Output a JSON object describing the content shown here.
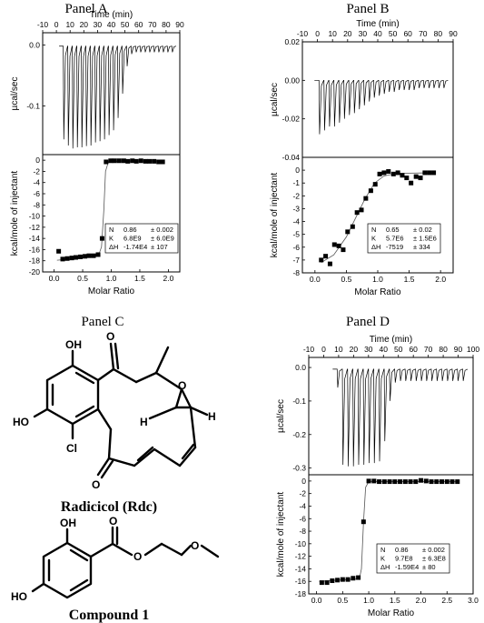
{
  "panels": {
    "A": "Panel A",
    "B": "Panel B",
    "C": "Panel C",
    "D": "Panel D"
  },
  "compounds": {
    "radicicol": "Radicicol (Rdc)",
    "compound1": "Compound 1",
    "atoms": {
      "OH": "OH",
      "HO": "HO",
      "Cl": "Cl",
      "O": "O",
      "H": "H"
    }
  },
  "chart_data": [
    {
      "id": "A",
      "type": "line",
      "top": {
        "xlabel": "Time (min)",
        "ylabel": "µcal/sec",
        "xlim": [
          -10,
          90
        ],
        "ylim": [
          -0.18,
          0.02
        ],
        "xticks": [
          -10,
          0,
          10,
          20,
          30,
          40,
          50,
          60,
          70,
          80,
          90
        ],
        "yticks": [
          0.0,
          -0.1
        ],
        "baseline": -0.002,
        "first_injection_time": 5,
        "interval": 3.3,
        "peaks": [
          -0.155,
          -0.165,
          -0.17,
          -0.168,
          -0.168,
          -0.166,
          -0.165,
          -0.16,
          -0.158,
          -0.155,
          -0.148,
          -0.14,
          -0.12,
          -0.08,
          -0.035,
          -0.015,
          -0.012,
          -0.012,
          -0.012,
          -0.012,
          -0.012,
          -0.012,
          -0.012,
          -0.012,
          -0.012
        ]
      },
      "bottom": {
        "xlabel": "Molar Ratio",
        "ylabel": "kcal/mole of injectant",
        "xlim": [
          -0.2,
          2.2
        ],
        "ylim": [
          -20,
          1
        ],
        "xticks": [
          0.0,
          0.5,
          1.0,
          1.5,
          2.0
        ],
        "yticks": [
          0,
          -2,
          -4,
          -6,
          -8,
          -10,
          -12,
          -14,
          -16,
          -18,
          -20
        ],
        "points": [
          [
            0.08,
            -16.3
          ],
          [
            0.15,
            -17.7
          ],
          [
            0.23,
            -17.6
          ],
          [
            0.31,
            -17.5
          ],
          [
            0.38,
            -17.4
          ],
          [
            0.46,
            -17.3
          ],
          [
            0.54,
            -17.2
          ],
          [
            0.61,
            -17.1
          ],
          [
            0.69,
            -17.1
          ],
          [
            0.77,
            -16.9
          ],
          [
            0.84,
            -14.0
          ],
          [
            0.91,
            -0.3
          ],
          [
            0.99,
            -0.1
          ],
          [
            1.06,
            -0.1
          ],
          [
            1.14,
            -0.1
          ],
          [
            1.22,
            -0.1
          ],
          [
            1.29,
            -0.2
          ],
          [
            1.37,
            -0.1
          ],
          [
            1.44,
            -0.2
          ],
          [
            1.52,
            -0.1
          ],
          [
            1.6,
            -0.2
          ],
          [
            1.67,
            -0.2
          ],
          [
            1.75,
            -0.2
          ],
          [
            1.83,
            -0.3
          ],
          [
            1.9,
            -0.3
          ]
        ],
        "fit": [
          [
            0.05,
            -17.9
          ],
          [
            0.5,
            -17.5
          ],
          [
            0.78,
            -17.0
          ],
          [
            0.83,
            -15.5
          ],
          [
            0.87,
            -9.0
          ],
          [
            0.9,
            -2.0
          ],
          [
            0.95,
            -0.3
          ],
          [
            1.2,
            -0.15
          ],
          [
            1.9,
            -0.15
          ]
        ],
        "stats": [
          [
            "N",
            "0.86",
            "± 0.002"
          ],
          [
            "K",
            "6.8E9",
            "± 6.0E9"
          ],
          [
            "ΔH",
            "-1.74E4",
            "± 107"
          ]
        ]
      }
    },
    {
      "id": "B",
      "type": "line",
      "top": {
        "xlabel": "Time (min)",
        "ylabel": "µcal/sec",
        "xlim": [
          -10,
          90
        ],
        "ylim": [
          -0.04,
          0.02
        ],
        "xticks": [
          -10,
          0,
          10,
          20,
          30,
          40,
          50,
          60,
          70,
          80,
          90
        ],
        "yticks": [
          0.02,
          0.0,
          -0.02,
          -0.04
        ],
        "baseline": 0.0,
        "first_injection_time": 1,
        "interval": 3.3,
        "peaks": [
          -0.028,
          -0.026,
          -0.024,
          -0.024,
          -0.022,
          -0.02,
          -0.018,
          -0.017,
          -0.015,
          -0.013,
          -0.011,
          -0.009,
          -0.008,
          -0.007,
          -0.006,
          -0.006,
          -0.005,
          -0.005,
          -0.005,
          -0.005,
          -0.004,
          -0.004,
          -0.004,
          -0.004,
          -0.004,
          -0.004
        ]
      },
      "bottom": {
        "xlabel": "Molar Ratio",
        "ylabel": "kcal/mole of injectant",
        "xlim": [
          -0.2,
          2.2
        ],
        "ylim": [
          -8,
          1
        ],
        "xticks": [
          0.0,
          0.5,
          1.0,
          1.5,
          2.0
        ],
        "yticks": [
          0,
          -1,
          -2,
          -3,
          -4,
          -5,
          -6,
          -7,
          -8
        ],
        "points": [
          [
            0.1,
            -7.0
          ],
          [
            0.17,
            -6.7
          ],
          [
            0.24,
            -7.3
          ],
          [
            0.31,
            -5.8
          ],
          [
            0.38,
            -5.9
          ],
          [
            0.45,
            -6.2
          ],
          [
            0.52,
            -4.8
          ],
          [
            0.6,
            -4.4
          ],
          [
            0.67,
            -3.3
          ],
          [
            0.74,
            -3.1
          ],
          [
            0.81,
            -2.2
          ],
          [
            0.89,
            -1.6
          ],
          [
            0.96,
            -1.1
          ],
          [
            1.03,
            -0.3
          ],
          [
            1.1,
            -0.2
          ],
          [
            1.17,
            -0.1
          ],
          [
            1.25,
            -0.3
          ],
          [
            1.32,
            -0.2
          ],
          [
            1.39,
            -0.4
          ],
          [
            1.46,
            -0.6
          ],
          [
            1.53,
            -1.0
          ],
          [
            1.61,
            -0.5
          ],
          [
            1.68,
            -0.6
          ],
          [
            1.75,
            -0.2
          ],
          [
            1.82,
            -0.2
          ],
          [
            1.89,
            -0.2
          ]
        ],
        "fit": [
          [
            0.1,
            -7.2
          ],
          [
            0.3,
            -6.6
          ],
          [
            0.5,
            -5.2
          ],
          [
            0.65,
            -3.7
          ],
          [
            0.8,
            -2.2
          ],
          [
            0.95,
            -1.0
          ],
          [
            1.1,
            -0.45
          ],
          [
            1.3,
            -0.25
          ],
          [
            1.9,
            -0.2
          ]
        ],
        "stats": [
          [
            "N",
            "0.65",
            "± 0.02"
          ],
          [
            "K",
            "5.7E6",
            "± 1.5E6"
          ],
          [
            "ΔH",
            "-7519",
            "± 334"
          ]
        ]
      }
    },
    {
      "id": "D",
      "type": "line",
      "top": {
        "xlabel": "Time (min)",
        "ylabel": "µcal/sec",
        "xlim": [
          -10,
          100
        ],
        "ylim": [
          -0.32,
          0.03
        ],
        "xticks": [
          -10,
          0,
          10,
          20,
          30,
          40,
          50,
          60,
          70,
          80,
          90,
          100
        ],
        "yticks": [
          0.0,
          -0.1,
          -0.2,
          -0.3
        ],
        "baseline": -0.005,
        "first_injection_time": 9,
        "interval": 3.5,
        "peaks": [
          -0.06,
          -0.29,
          -0.295,
          -0.295,
          -0.29,
          -0.29,
          -0.285,
          -0.285,
          -0.28,
          -0.22,
          -0.1,
          -0.045,
          -0.04,
          -0.04,
          -0.04,
          -0.04,
          -0.04,
          -0.04,
          -0.04,
          -0.04,
          -0.04,
          -0.04,
          -0.04,
          -0.04,
          -0.04
        ]
      },
      "bottom": {
        "xlabel": "Molar Ratio",
        "ylabel": "kcal/mole of injectant",
        "xlim": [
          -0.15,
          3.0
        ],
        "ylim": [
          -18,
          1
        ],
        "xticks": [
          0.0,
          0.5,
          1.0,
          1.5,
          2.0,
          2.5,
          3.0
        ],
        "yticks": [
          0,
          -2,
          -4,
          -6,
          -8,
          -10,
          -12,
          -14,
          -16,
          -18
        ],
        "points": [
          [
            0.1,
            -16.2
          ],
          [
            0.2,
            -16.2
          ],
          [
            0.3,
            -15.9
          ],
          [
            0.4,
            -15.8
          ],
          [
            0.5,
            -15.7
          ],
          [
            0.6,
            -15.7
          ],
          [
            0.7,
            -15.5
          ],
          [
            0.8,
            -15.4
          ],
          [
            0.9,
            -6.5
          ],
          [
            1.0,
            0.0
          ],
          [
            1.1,
            0.0
          ],
          [
            1.2,
            -0.1
          ],
          [
            1.3,
            -0.1
          ],
          [
            1.4,
            -0.1
          ],
          [
            1.5,
            -0.1
          ],
          [
            1.6,
            -0.1
          ],
          [
            1.7,
            -0.1
          ],
          [
            1.8,
            -0.1
          ],
          [
            1.9,
            -0.1
          ],
          [
            2.0,
            0.1
          ],
          [
            2.1,
            0.0
          ],
          [
            2.2,
            -0.1
          ],
          [
            2.3,
            -0.1
          ],
          [
            2.4,
            -0.1
          ],
          [
            2.5,
            -0.1
          ],
          [
            2.6,
            -0.1
          ],
          [
            2.7,
            -0.1
          ]
        ],
        "fit": [
          [
            0.05,
            -16.0
          ],
          [
            0.82,
            -15.6
          ],
          [
            0.86,
            -14.0
          ],
          [
            0.9,
            -6.5
          ],
          [
            0.94,
            -1.0
          ],
          [
            1.0,
            -0.1
          ],
          [
            2.7,
            -0.1
          ]
        ],
        "stats": [
          [
            "N",
            "0.86",
            "± 0.002"
          ],
          [
            "K",
            "9.7E8",
            "± 6.3E8"
          ],
          [
            "ΔH",
            "-1.59E4",
            "± 80"
          ]
        ]
      }
    }
  ]
}
